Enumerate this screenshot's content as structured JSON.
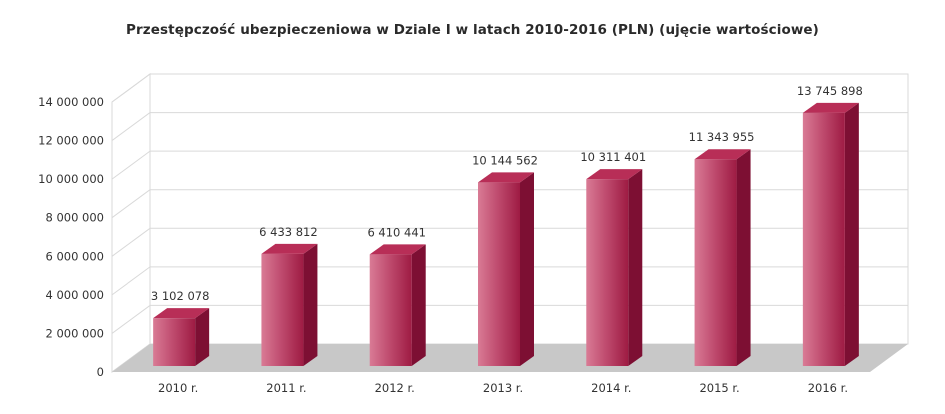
{
  "chart_data": {
    "type": "bar",
    "title": "Przestępczość ubezpieczeniowa w Dziale I w latach 2010-2016 (PLN) (ujęcie wartościowe)",
    "categories": [
      "2010 r.",
      "2011 r.",
      "2012 r.",
      "2013 r.",
      "2014 r.",
      "2015 r.",
      "2016 r."
    ],
    "values": [
      3102078,
      6433812,
      6410441,
      10144562,
      10311401,
      11343955,
      13745898
    ],
    "data_labels": [
      "3 102 078",
      "6 433 812",
      "6 410 441",
      "10 144 562",
      "10 311 401",
      "11 343 955",
      "13 745 898"
    ],
    "ylim": [
      0,
      14000000
    ],
    "yticks": [
      0,
      2000000,
      4000000,
      6000000,
      8000000,
      10000000,
      12000000,
      14000000
    ],
    "ytick_labels": [
      "0",
      "2 000 000",
      "4 000 000",
      "6 000 000",
      "8 000 000",
      "10 000 000",
      "12 000 000",
      "14 000 000"
    ],
    "grid": true,
    "style": "3d-column",
    "colors": {
      "bar_front_light": "#d4708c",
      "bar_front_dark": "#a31c45",
      "bar_side": "#7d0f33",
      "bar_top": "#b82e57",
      "floor": "#c8c8c8",
      "grid": "#d9d9d9"
    }
  }
}
